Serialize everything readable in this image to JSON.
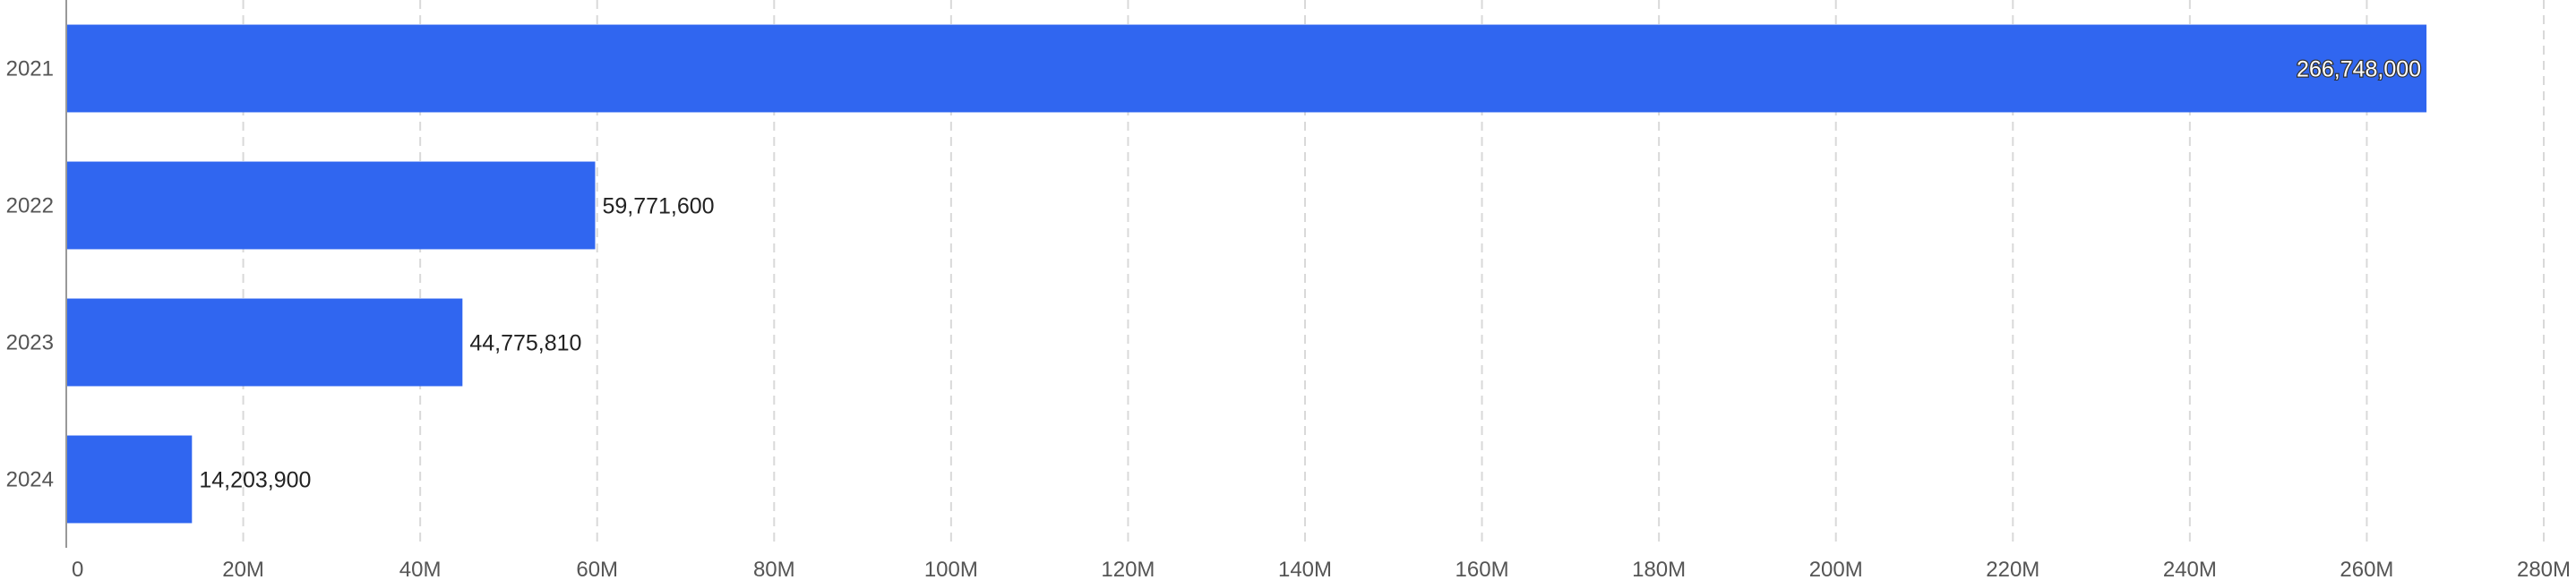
{
  "chart_data": {
    "type": "bar",
    "orientation": "horizontal",
    "categories": [
      "2021",
      "2022",
      "2023",
      "2024"
    ],
    "values": [
      266748000,
      59771600,
      44775810,
      14203900
    ],
    "data_labels": [
      "266,748,000",
      "59,771,600",
      "44,775,810",
      "14,203,900"
    ],
    "xlim": [
      0,
      280000000
    ],
    "x_ticks": [
      0,
      20000000,
      40000000,
      60000000,
      80000000,
      100000000,
      120000000,
      140000000,
      160000000,
      180000000,
      200000000,
      220000000,
      240000000,
      260000000,
      280000000
    ],
    "x_tick_labels": [
      "0",
      "20M",
      "40M",
      "60M",
      "80M",
      "100M",
      "120M",
      "140M",
      "160M",
      "180M",
      "200M",
      "220M",
      "240M",
      "260M",
      "280M"
    ],
    "title": "",
    "xlabel": "",
    "ylabel": "",
    "grid": "vertical dashed",
    "legend": "none",
    "colors": {
      "bar": "#3066f0",
      "grid": "#d9d9d9",
      "axis": "#999999"
    }
  }
}
